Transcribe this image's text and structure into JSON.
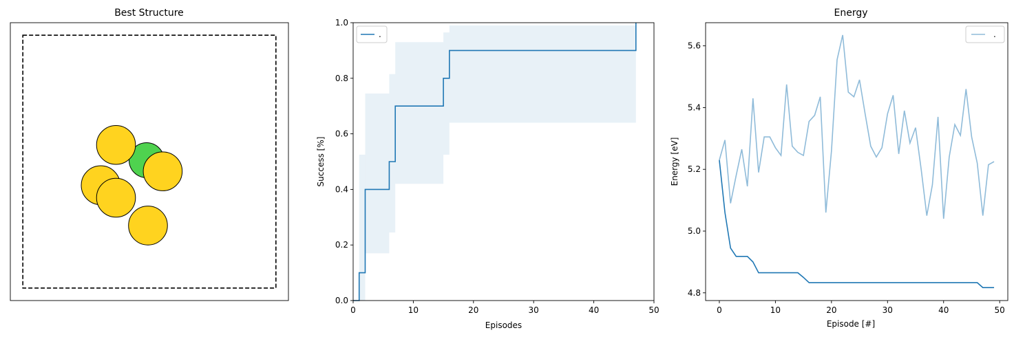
{
  "chart_data": [
    {
      "type": "scatter",
      "title": "Best Structure",
      "xlabel": "",
      "ylabel": "",
      "xlim": [
        0,
        1
      ],
      "ylim": [
        0,
        1
      ],
      "show_ticks": false,
      "bounding_box": {
        "x0": 0.045,
        "y0": 0.045,
        "x1": 0.955,
        "y1": 0.955,
        "style": "dashed",
        "color": "#000000"
      },
      "atoms": [
        {
          "x": 0.49,
          "y": 0.505,
          "r": 0.063,
          "color": "#4fd24f",
          "element": "green"
        },
        {
          "x": 0.38,
          "y": 0.56,
          "r": 0.07,
          "color": "#ffd31f",
          "element": "yellow"
        },
        {
          "x": 0.548,
          "y": 0.465,
          "r": 0.07,
          "color": "#ffd31f",
          "element": "yellow"
        },
        {
          "x": 0.325,
          "y": 0.415,
          "r": 0.07,
          "color": "#ffd31f",
          "element": "yellow"
        },
        {
          "x": 0.495,
          "y": 0.27,
          "r": 0.07,
          "color": "#ffd31f",
          "element": "yellow"
        },
        {
          "x": 0.38,
          "y": 0.37,
          "r": 0.07,
          "color": "#ffd31f",
          "element": "yellow"
        }
      ]
    },
    {
      "type": "line",
      "title": "",
      "xlabel": "Episodes",
      "ylabel": "Success [%]",
      "xlim": [
        0,
        50
      ],
      "ylim": [
        0,
        1
      ],
      "xticks": [
        0,
        10,
        20,
        30,
        40,
        50
      ],
      "yticks": [
        0.0,
        0.2,
        0.4,
        0.6,
        0.8,
        1.0
      ],
      "ytick_labels": [
        "0.0",
        "0.2",
        "0.4",
        "0.6",
        "0.8",
        "1.0"
      ],
      "legend": {
        "position": "top-left",
        "entries": [
          "."
        ]
      },
      "series": [
        {
          "name": ".",
          "style": "step",
          "color": "#1f77b4",
          "x": [
            1,
            2,
            6,
            7,
            15,
            16,
            47
          ],
          "y": [
            0.1,
            0.4,
            0.5,
            0.7,
            0.8,
            0.9,
            1.0
          ],
          "x_end": 47
        }
      ],
      "band": {
        "color": "#1f77b4",
        "opacity": 0.1,
        "style": "step",
        "x": [
          1,
          2,
          6,
          7,
          15,
          16,
          47
        ],
        "lower": [
          0.0,
          0.17,
          0.245,
          0.42,
          0.525,
          0.64,
          0.64
        ],
        "upper": [
          0.525,
          0.745,
          0.815,
          0.93,
          0.965,
          0.99,
          1.0
        ]
      }
    },
    {
      "type": "line",
      "title": "Energy",
      "xlabel": "Episode [#]",
      "ylabel": "Energy [eV]",
      "xlim": [
        -2.45,
        51.45
      ],
      "ylim": [
        4.775,
        5.675
      ],
      "xticks": [
        0,
        10,
        20,
        30,
        40,
        50
      ],
      "yticks": [
        4.8,
        5.0,
        5.2,
        5.4,
        5.6
      ],
      "ytick_labels": [
        "4.8",
        "5.0",
        "5.2",
        "5.4",
        "5.6"
      ],
      "legend": {
        "position": "top-right",
        "entries": [
          "."
        ]
      },
      "series": [
        {
          "name": ".",
          "color": "#1f77b4",
          "alpha": 0.5,
          "x": [
            0,
            1,
            2,
            3,
            4,
            5,
            6,
            7,
            8,
            9,
            10,
            11,
            12,
            13,
            14,
            15,
            16,
            17,
            18,
            19,
            20,
            21,
            22,
            23,
            24,
            25,
            26,
            27,
            28,
            29,
            30,
            31,
            32,
            33,
            34,
            35,
            36,
            37,
            38,
            39,
            40,
            41,
            42,
            43,
            44,
            45,
            46,
            47,
            48,
            49
          ],
          "y": [
            5.23,
            5.295,
            5.09,
            5.18,
            5.265,
            5.145,
            5.43,
            5.19,
            5.305,
            5.305,
            5.27,
            5.245,
            5.475,
            5.275,
            5.255,
            5.245,
            5.355,
            5.375,
            5.435,
            5.06,
            5.26,
            5.555,
            5.635,
            5.45,
            5.435,
            5.49,
            5.38,
            5.275,
            5.24,
            5.27,
            5.38,
            5.44,
            5.25,
            5.39,
            5.285,
            5.335,
            5.2,
            5.05,
            5.15,
            5.37,
            5.04,
            5.24,
            5.345,
            5.31,
            5.46,
            5.305,
            5.22,
            5.05,
            5.215,
            5.225
          ]
        },
        {
          "name": "",
          "color": "#1f77b4",
          "alpha": 1.0,
          "x": [
            0,
            1,
            2,
            3,
            4,
            5,
            6,
            7,
            8,
            9,
            10,
            11,
            12,
            13,
            14,
            15,
            16,
            17,
            18,
            19,
            20,
            21,
            22,
            23,
            24,
            25,
            26,
            27,
            28,
            29,
            30,
            31,
            32,
            33,
            34,
            35,
            36,
            37,
            38,
            39,
            40,
            41,
            42,
            43,
            44,
            45,
            46,
            47,
            48,
            49
          ],
          "y": [
            5.23,
            5.06,
            4.945,
            4.918,
            4.918,
            4.918,
            4.9,
            4.865,
            4.865,
            4.865,
            4.865,
            4.865,
            4.865,
            4.865,
            4.865,
            4.85,
            4.833,
            4.833,
            4.833,
            4.833,
            4.833,
            4.833,
            4.833,
            4.833,
            4.833,
            4.833,
            4.833,
            4.833,
            4.833,
            4.833,
            4.833,
            4.833,
            4.833,
            4.833,
            4.833,
            4.833,
            4.833,
            4.833,
            4.833,
            4.833,
            4.833,
            4.833,
            4.833,
            4.833,
            4.833,
            4.833,
            4.833,
            4.817,
            4.817,
            4.817
          ]
        }
      ]
    }
  ]
}
